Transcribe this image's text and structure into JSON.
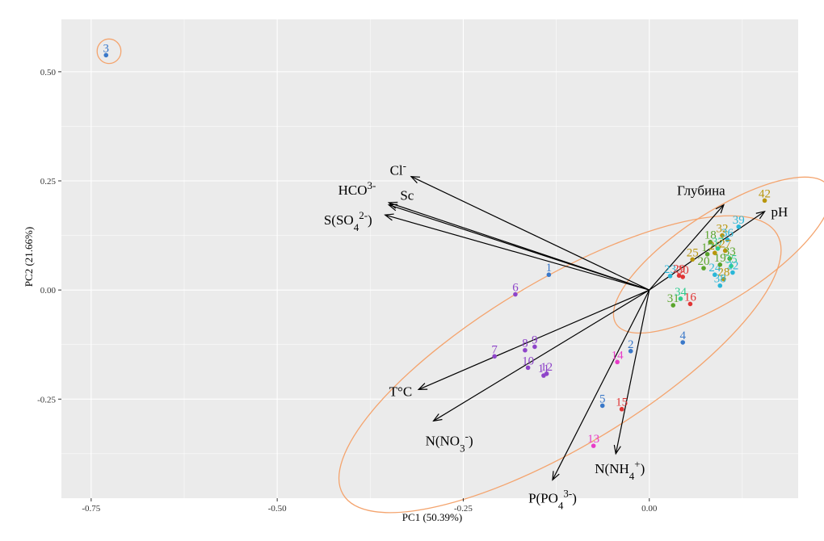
{
  "chart_data": {
    "type": "scatter",
    "title": "",
    "xlabel": "PC1 (50.39%)",
    "ylabel": "PC2 (21.66%)",
    "xlim": [
      -0.79,
      0.2
    ],
    "ylim": [
      -0.477,
      0.62
    ],
    "x_ticks": [
      -0.75,
      -0.5,
      -0.25,
      0.0
    ],
    "y_ticks": [
      -0.25,
      0.0,
      0.25,
      0.5
    ],
    "x_tick_labels": [
      "-0.75",
      "-0.50",
      "-0.25",
      "0.00"
    ],
    "y_tick_labels": [
      "-0.25",
      "0.00",
      "0.25",
      "0.50"
    ],
    "grid": true,
    "origin": [
      0.0,
      0.0
    ],
    "loadings": [
      {
        "label": "Cl",
        "sup": "-",
        "x": -0.32,
        "y": 0.26
      },
      {
        "label": "HCO",
        "sup": "3-",
        "x": -0.35,
        "y": 0.2
      },
      {
        "label": "Sc",
        "x": -0.35,
        "y": 0.195
      },
      {
        "label": "S(SO",
        "sub": "4",
        "sup": "2-",
        "tail": ")",
        "x": -0.355,
        "y": 0.172
      },
      {
        "label": "Глубина",
        "x": 0.1,
        "y": 0.195
      },
      {
        "label": "pH",
        "x": 0.155,
        "y": 0.18
      },
      {
        "label": "T°C",
        "x": -0.31,
        "y": -0.228
      },
      {
        "label": "N(NO",
        "sub": "3",
        "sup": "-",
        "tail": ")",
        "x": -0.29,
        "y": -0.3
      },
      {
        "label": "N(NH",
        "sub": "4",
        "sup": "+",
        "tail": ")",
        "x": -0.045,
        "y": -0.375
      },
      {
        "label": "P(PO",
        "sub": "4",
        "sup": "3-",
        "tail": ")",
        "x": -0.13,
        "y": -0.435
      }
    ],
    "ellipses": [
      {
        "cx": -0.726,
        "cy": 0.547,
        "rx": 0.016,
        "ry": 0.028,
        "angle": 0
      },
      {
        "cx": 0.098,
        "cy": 0.08,
        "rx": 0.17,
        "ry": 0.1,
        "angle": 33
      },
      {
        "cx": -0.12,
        "cy": -0.17,
        "rx": 0.34,
        "ry": 0.19,
        "angle": 31
      }
    ],
    "points": [
      {
        "id": "3",
        "x": -0.73,
        "y": 0.538,
        "color": "#3a78c9"
      },
      {
        "id": "1",
        "x": -0.135,
        "y": 0.035,
        "color": "#3a78c9"
      },
      {
        "id": "2",
        "x": -0.025,
        "y": -0.14,
        "color": "#3a78c9"
      },
      {
        "id": "4",
        "x": 0.045,
        "y": -0.12,
        "color": "#3a78c9"
      },
      {
        "id": "5",
        "x": -0.063,
        "y": -0.265,
        "color": "#3a78c9"
      },
      {
        "id": "6",
        "x": -0.18,
        "y": -0.01,
        "color": "#8e44c9"
      },
      {
        "id": "7",
        "x": -0.208,
        "y": -0.152,
        "color": "#8e44c9"
      },
      {
        "id": "8",
        "x": -0.167,
        "y": -0.138,
        "color": "#8e44c9"
      },
      {
        "id": "9",
        "x": -0.154,
        "y": -0.13,
        "color": "#8e44c9"
      },
      {
        "id": "10",
        "x": -0.163,
        "y": -0.178,
        "color": "#8e44c9"
      },
      {
        "id": "11",
        "x": -0.142,
        "y": -0.196,
        "color": "#8e44c9"
      },
      {
        "id": "12",
        "x": -0.138,
        "y": -0.192,
        "color": "#8e44c9"
      },
      {
        "id": "13",
        "x": -0.075,
        "y": -0.357,
        "color": "#e83cc8"
      },
      {
        "id": "14",
        "x": -0.043,
        "y": -0.165,
        "color": "#e83cc8"
      },
      {
        "id": "15",
        "x": -0.037,
        "y": -0.273,
        "color": "#e03535"
      },
      {
        "id": "16",
        "x": 0.055,
        "y": -0.032,
        "color": "#e03535"
      },
      {
        "id": "23",
        "x": 0.028,
        "y": 0.032,
        "color": "#2ab7d8"
      },
      {
        "id": "29",
        "x": 0.04,
        "y": 0.033,
        "color": "#e03535"
      },
      {
        "id": "30",
        "x": 0.045,
        "y": 0.03,
        "color": "#e03535"
      },
      {
        "id": "31",
        "x": 0.032,
        "y": -0.035,
        "color": "#5aa52c"
      },
      {
        "id": "34",
        "x": 0.042,
        "y": -0.02,
        "color": "#2ecc8e"
      },
      {
        "id": "20",
        "x": 0.073,
        "y": 0.05,
        "color": "#5aa52c"
      },
      {
        "id": "24",
        "x": 0.088,
        "y": 0.035,
        "color": "#2ab7d8"
      },
      {
        "id": "19",
        "x": 0.095,
        "y": 0.058,
        "color": "#5aa52c"
      },
      {
        "id": "25",
        "x": 0.058,
        "y": 0.07,
        "color": "#b8960c"
      },
      {
        "id": "17",
        "x": 0.078,
        "y": 0.082,
        "color": "#5aa52c"
      },
      {
        "id": "18",
        "x": 0.082,
        "y": 0.11,
        "color": "#5aa52c"
      },
      {
        "id": "26",
        "x": 0.088,
        "y": 0.085,
        "color": "#b8960c"
      },
      {
        "id": "32",
        "x": 0.098,
        "y": 0.125,
        "color": "#b8960c"
      },
      {
        "id": "36",
        "x": 0.105,
        "y": 0.115,
        "color": "#2ab7d8"
      },
      {
        "id": "37",
        "x": 0.092,
        "y": 0.095,
        "color": "#2ecc8e"
      },
      {
        "id": "27",
        "x": 0.102,
        "y": 0.09,
        "color": "#b8960c"
      },
      {
        "id": "33",
        "x": 0.108,
        "y": 0.072,
        "color": "#5aa52c"
      },
      {
        "id": "35",
        "x": 0.11,
        "y": 0.055,
        "color": "#2ecc8e"
      },
      {
        "id": "22",
        "x": 0.112,
        "y": 0.04,
        "color": "#2ab7d8"
      },
      {
        "id": "28",
        "x": 0.1,
        "y": 0.025,
        "color": "#b8960c"
      },
      {
        "id": "38",
        "x": 0.095,
        "y": 0.01,
        "color": "#2ab7d8"
      },
      {
        "id": "39",
        "x": 0.12,
        "y": 0.145,
        "color": "#2ab7d8"
      },
      {
        "id": "42",
        "x": 0.155,
        "y": 0.205,
        "color": "#b8960c"
      }
    ]
  },
  "colors": {
    "panel": "#ebebeb",
    "grid_major": "#ffffff",
    "ellipse": "#f4a46e",
    "arrow": "#000000"
  }
}
